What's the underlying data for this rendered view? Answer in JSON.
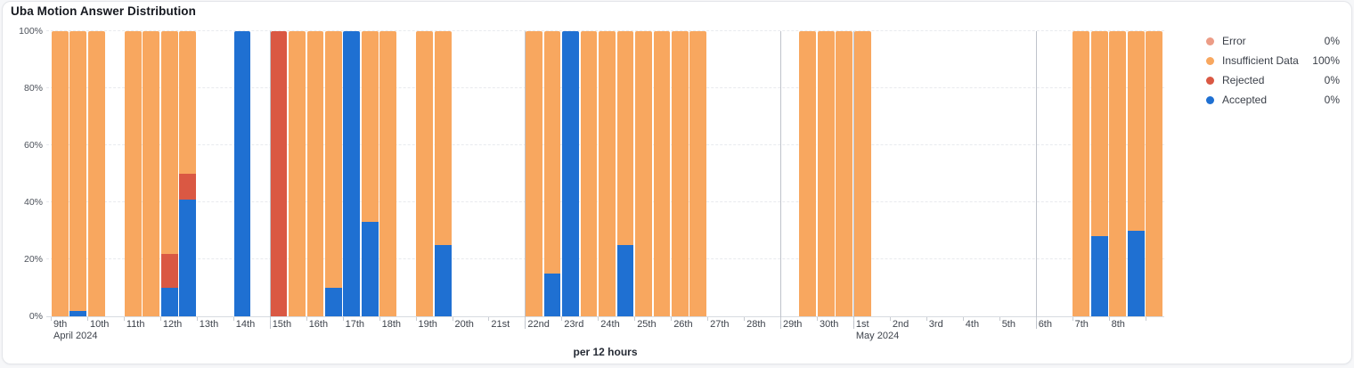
{
  "card": {
    "title": "Uba Motion Answer Distribution"
  },
  "legend": {
    "items": [
      {
        "label": "Error",
        "value": "0%",
        "color": "#EC9C86"
      },
      {
        "label": "Insufficient Data",
        "value": "100%",
        "color": "#F8A75F"
      },
      {
        "label": "Rejected",
        "value": "0%",
        "color": "#DA5843"
      },
      {
        "label": "Accepted",
        "value": "0%",
        "color": "#1F70D2"
      }
    ]
  },
  "chart_data": {
    "type": "bar",
    "stacked": true,
    "title": "Uba Motion Answer Distribution",
    "xlabel": "per 12 hours",
    "ylabel": "",
    "ylim": [
      0,
      100
    ],
    "unit": "percent",
    "grid": "horizontal-dashed",
    "legend_position": "right",
    "y_ticks": [
      "0%",
      "20%",
      "40%",
      "60%",
      "80%",
      "100%"
    ],
    "x_tick_labels": [
      "9th",
      "10th",
      "11th",
      "12th",
      "13th",
      "14th",
      "15th",
      "16th",
      "17th",
      "18th",
      "19th",
      "20th",
      "21st",
      "22nd",
      "23rd",
      "24th",
      "25th",
      "26th",
      "27th",
      "28th",
      "29th",
      "30th",
      "1st",
      "2nd",
      "3rd",
      "4th",
      "5th",
      "6th",
      "7th",
      "8th"
    ],
    "month_labels": [
      {
        "index": 0,
        "label": "April 2024"
      },
      {
        "index": 22,
        "label": "May 2024"
      }
    ],
    "week_separator_indices": [
      6,
      13,
      20,
      27
    ],
    "month_separator_index": 22,
    "stack_order": [
      "accepted",
      "rejected",
      "error",
      "insufficient"
    ],
    "series_names": {
      "accepted": "Accepted",
      "rejected": "Rejected",
      "error": "Error",
      "insufficient": "Insufficient Data"
    },
    "colors": {
      "accepted": "#1F70D2",
      "rejected": "#DA5843",
      "error": "#EC9C86",
      "insufficient": "#F8A75F"
    },
    "buckets": [
      {
        "date": "Apr 9",
        "day": 0,
        "half": 0,
        "insufficient": 100
      },
      {
        "date": "Apr 9",
        "day": 0,
        "half": 1,
        "accepted": 2,
        "insufficient": 98
      },
      {
        "date": "Apr 10",
        "day": 1,
        "half": 0,
        "insufficient": 100
      },
      {
        "date": "Apr 11",
        "day": 2,
        "half": 0,
        "insufficient": 100
      },
      {
        "date": "Apr 11",
        "day": 2,
        "half": 1,
        "insufficient": 100
      },
      {
        "date": "Apr 12",
        "day": 3,
        "half": 0,
        "accepted": 10,
        "rejected": 12,
        "insufficient": 78
      },
      {
        "date": "Apr 12",
        "day": 3,
        "half": 1,
        "accepted": 41,
        "rejected": 9,
        "insufficient": 50
      },
      {
        "date": "Apr 14",
        "day": 5,
        "half": 0,
        "accepted": 100
      },
      {
        "date": "Apr 15",
        "day": 6,
        "half": 0,
        "rejected": 100
      },
      {
        "date": "Apr 15",
        "day": 6,
        "half": 1,
        "insufficient": 100
      },
      {
        "date": "Apr 16",
        "day": 7,
        "half": 0,
        "insufficient": 100
      },
      {
        "date": "Apr 16",
        "day": 7,
        "half": 1,
        "accepted": 10,
        "insufficient": 90
      },
      {
        "date": "Apr 17",
        "day": 8,
        "half": 0,
        "accepted": 100
      },
      {
        "date": "Apr 17",
        "day": 8,
        "half": 1,
        "accepted": 33,
        "insufficient": 67
      },
      {
        "date": "Apr 18",
        "day": 9,
        "half": 0,
        "insufficient": 100
      },
      {
        "date": "Apr 19",
        "day": 10,
        "half": 0,
        "insufficient": 100
      },
      {
        "date": "Apr 19",
        "day": 10,
        "half": 1,
        "accepted": 25,
        "insufficient": 75
      },
      {
        "date": "Apr 22",
        "day": 13,
        "half": 0,
        "insufficient": 100
      },
      {
        "date": "Apr 22",
        "day": 13,
        "half": 1,
        "accepted": 15,
        "insufficient": 85
      },
      {
        "date": "Apr 23",
        "day": 14,
        "half": 0,
        "accepted": 100
      },
      {
        "date": "Apr 23",
        "day": 14,
        "half": 1,
        "insufficient": 100
      },
      {
        "date": "Apr 24",
        "day": 15,
        "half": 0,
        "insufficient": 100
      },
      {
        "date": "Apr 24",
        "day": 15,
        "half": 1,
        "accepted": 25,
        "insufficient": 75
      },
      {
        "date": "Apr 25",
        "day": 16,
        "half": 0,
        "insufficient": 100
      },
      {
        "date": "Apr 25",
        "day": 16,
        "half": 1,
        "insufficient": 100
      },
      {
        "date": "Apr 26",
        "day": 17,
        "half": 0,
        "insufficient": 100
      },
      {
        "date": "Apr 26",
        "day": 17,
        "half": 1,
        "insufficient": 100
      },
      {
        "date": "Apr 29",
        "day": 20,
        "half": 1,
        "insufficient": 100
      },
      {
        "date": "Apr 30",
        "day": 21,
        "half": 0,
        "insufficient": 100
      },
      {
        "date": "Apr 30",
        "day": 21,
        "half": 1,
        "insufficient": 100
      },
      {
        "date": "May 1",
        "day": 22,
        "half": 0,
        "insufficient": 100
      },
      {
        "date": "May 7",
        "day": 28,
        "half": 0,
        "insufficient": 100
      },
      {
        "date": "May 7",
        "day": 28,
        "half": 1,
        "accepted": 28,
        "insufficient": 72
      },
      {
        "date": "May 8",
        "day": 29,
        "half": 0,
        "insufficient": 100
      },
      {
        "date": "May 8",
        "day": 29,
        "half": 1,
        "accepted": 30,
        "insufficient": 70
      },
      {
        "date": "May 9",
        "day": 30,
        "half": 0,
        "insufficient": 100
      }
    ]
  }
}
